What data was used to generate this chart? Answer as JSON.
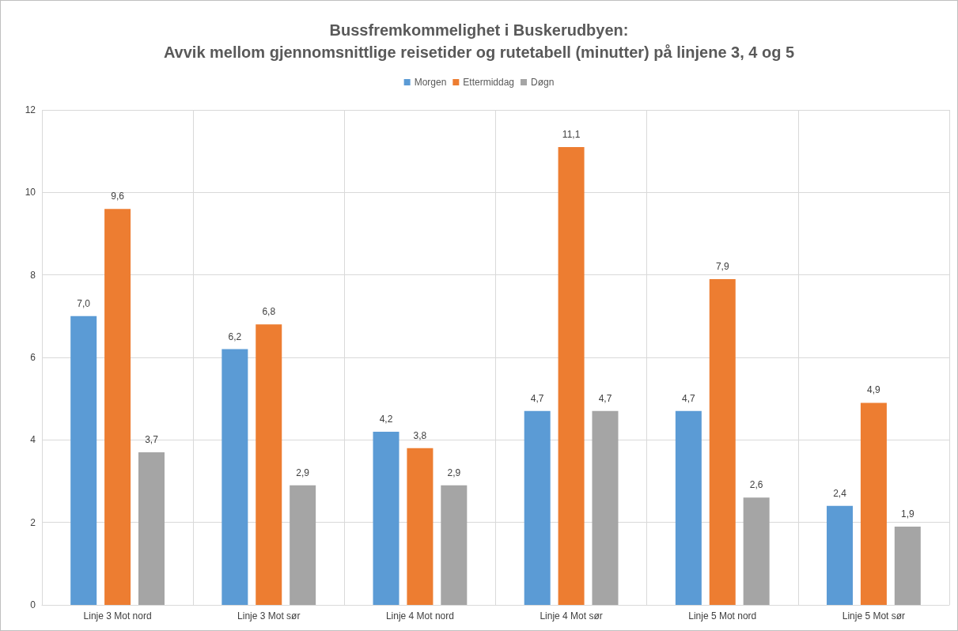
{
  "chart_data": {
    "type": "bar",
    "title": "Bussfremkommelighet i Buskerudbyen:",
    "subtitle": "Avvik mellom gjennomsnittlige reisetider og rutetabell (minutter) på linjene 3, 4 og 5",
    "categories": [
      "Linje 3 Mot nord",
      "Linje 3 Mot sør",
      "Linje 4 Mot nord",
      "Linje 4 Mot sør",
      "Linje 5 Mot nord",
      "Linje 5 Mot sør"
    ],
    "series": [
      {
        "name": "Morgen",
        "color": "#5b9bd5",
        "values": [
          7.0,
          6.2,
          4.2,
          4.7,
          4.7,
          2.4
        ],
        "value_labels": [
          "7,0",
          "6,2",
          "4,2",
          "4,7",
          "4,7",
          "2,4"
        ]
      },
      {
        "name": "Ettermiddag",
        "color": "#ed7d31",
        "values": [
          9.6,
          6.8,
          3.8,
          11.1,
          7.9,
          4.9
        ],
        "value_labels": [
          "9,6",
          "6,8",
          "3,8",
          "11,1",
          "7,9",
          "4,9"
        ]
      },
      {
        "name": "Døgn",
        "color": "#a5a5a5",
        "values": [
          3.7,
          2.9,
          2.9,
          4.7,
          2.6,
          1.9
        ],
        "value_labels": [
          "3,7",
          "2,9",
          "2,9",
          "4,7",
          "2,6",
          "1,9"
        ]
      }
    ],
    "ylim": [
      0,
      12
    ],
    "yticks": [
      0,
      2,
      4,
      6,
      8,
      10,
      12
    ],
    "grid": true,
    "legend": "top"
  }
}
